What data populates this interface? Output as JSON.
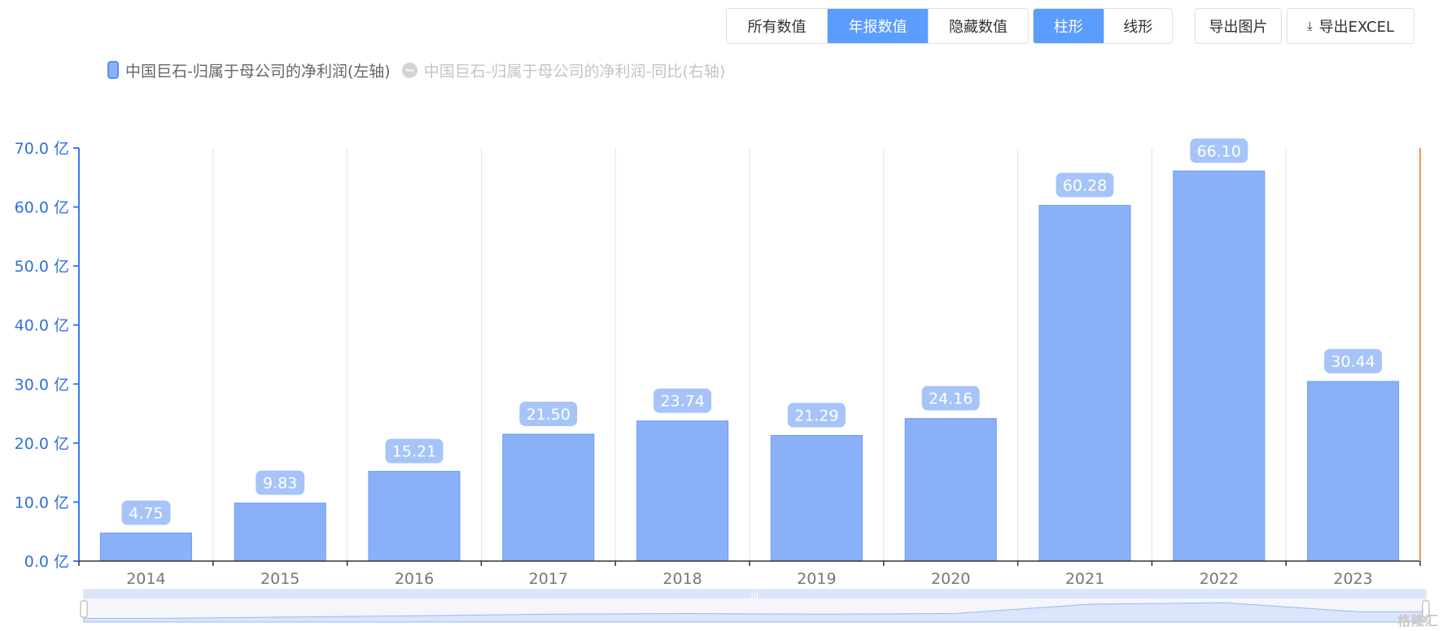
{
  "toolbar": {
    "view_group": [
      {
        "label": "所有数值",
        "active": false
      },
      {
        "label": "年报数值",
        "active": true
      },
      {
        "label": "隐藏数值",
        "active": false
      }
    ],
    "type_group": [
      {
        "label": "柱形",
        "active": true
      },
      {
        "label": "线形",
        "active": false
      }
    ],
    "export_image_label": "导出图片",
    "export_excel_label": "导出EXCEL"
  },
  "legend": [
    {
      "label": "中国巨石-归属于母公司的净利润(左轴)",
      "enabled": true
    },
    {
      "label": "中国巨石-归属于母公司的净利润-同比(右轴)",
      "enabled": false
    }
  ],
  "watermark": "格隆汇",
  "chart_data": {
    "type": "bar",
    "categories": [
      "2014",
      "2015",
      "2016",
      "2017",
      "2018",
      "2019",
      "2020",
      "2021",
      "2022",
      "2023"
    ],
    "series": [
      {
        "name": "中国巨石-归属于母公司的净利润(左轴)",
        "values": [
          4.75,
          9.83,
          15.21,
          21.5,
          23.74,
          21.29,
          24.16,
          60.28,
          66.1,
          30.44
        ]
      }
    ],
    "data_labels": [
      "4.75",
      "9.83",
      "15.21",
      "21.50",
      "23.74",
      "21.29",
      "24.16",
      "60.28",
      "66.10",
      "30.44"
    ],
    "y_ticks": [
      "0.0 亿",
      "10.0 亿",
      "20.0 亿",
      "30.0 亿",
      "40.0 亿",
      "50.0 亿",
      "60.0 亿",
      "70.0 亿"
    ],
    "ylim": [
      0,
      70
    ],
    "y_unit": "亿",
    "grid": "vertical",
    "legend_position": "top-left",
    "colors": {
      "bar_fill": "#8ab1f8",
      "bar_stroke": "#6a9cf2",
      "label_bg": "#a7c4f9",
      "axis": "#3a7bef",
      "tick_text": "#2f6fe0",
      "x_text": "#777777",
      "grid": "#e3e3e3",
      "right_marker": "#f7934c",
      "zoom_fill": "#dbe5fb"
    }
  }
}
